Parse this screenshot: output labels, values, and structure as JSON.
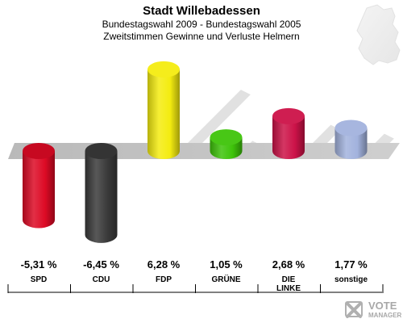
{
  "title": "Stadt Willebadessen",
  "subtitle_line1": "Bundestagswahl 2009 - Bundestagswahl 2005",
  "subtitle_line2": "Zweitstimmen Gewinne und Verluste Helmern",
  "logo_text_top": "VOTE",
  "logo_text_bottom": "MANAGER",
  "chart_data": {
    "type": "bar",
    "categories": [
      "SPD",
      "CDU",
      "FDP",
      "GRÜNE",
      "DIE LINKE",
      "sonstige"
    ],
    "category_labels": [
      [
        "SPD"
      ],
      [
        "CDU"
      ],
      [
        "FDP"
      ],
      [
        "GRÜNE"
      ],
      [
        "DIE",
        "LINKE"
      ],
      [
        "sonstige"
      ]
    ],
    "values": [
      -5.31,
      -6.45,
      6.28,
      1.05,
      2.68,
      1.77
    ],
    "value_labels": [
      "-5,31 %",
      "-6,45 %",
      "6,28 %",
      "1,05 %",
      "2,68 %",
      "1,77 %"
    ],
    "colors": [
      "#dd0a25",
      "#3a3a3a",
      "#f4ec10",
      "#3ec40a",
      "#cc1248",
      "#a2b2dd"
    ],
    "ylim": [
      -6.45,
      6.28
    ],
    "grid": false,
    "legend": "none"
  }
}
